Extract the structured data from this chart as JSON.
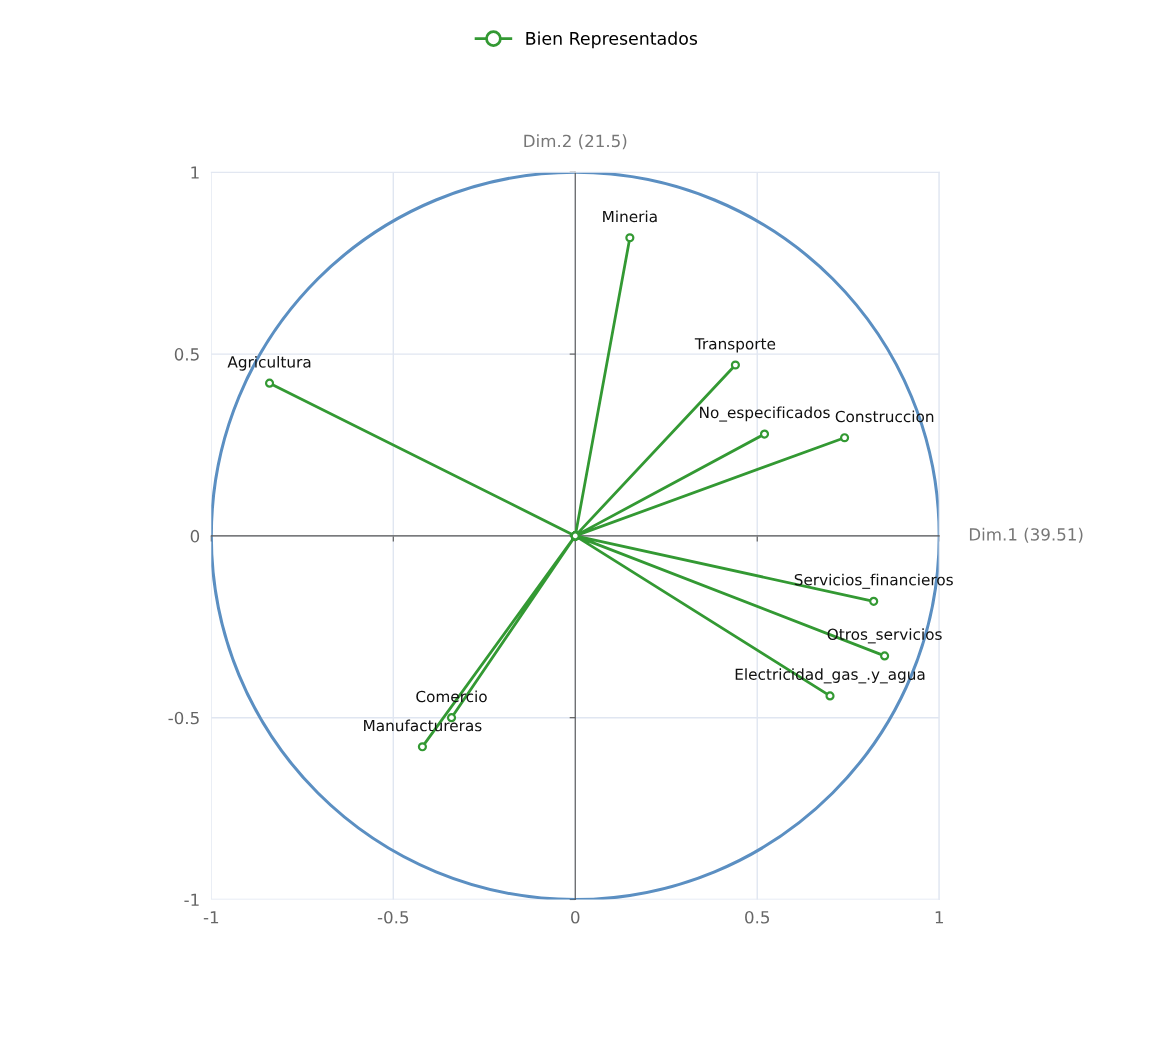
{
  "chart_data": {
    "type": "line",
    "xlabel": "Dim.1 (39.51)",
    "ylabel": "Dim.2 (21.5)",
    "xlim": [
      -1,
      1
    ],
    "ylim": [
      -1,
      1
    ],
    "xticks": [
      -1,
      -0.5,
      0,
      0.5,
      1
    ],
    "yticks": [
      -1,
      -0.5,
      0,
      0.5,
      1
    ],
    "grid": true,
    "legend": "top",
    "marker": "circle",
    "line_style": "solid",
    "series": [
      {
        "name": "Bien Representados",
        "color": "#339933",
        "x": [
          0,
          0.15,
          0,
          0.44,
          0,
          0.52,
          0,
          0.74,
          0,
          -0.84,
          0,
          0.82,
          0,
          0.85,
          0,
          0.7,
          0,
          -0.34,
          0,
          -0.42
        ],
        "values": [
          0,
          0.82,
          0,
          0.47,
          0,
          0.28,
          0,
          0.27,
          0,
          0.42,
          0,
          -0.18,
          0,
          -0.33,
          0,
          -0.44,
          0,
          -0.5,
          0,
          -0.58
        ]
      }
    ],
    "annotations": [
      {
        "text": "Mineria",
        "x": 0.15,
        "y": 0.82
      },
      {
        "text": "Transporte",
        "x": 0.44,
        "y": 0.47
      },
      {
        "text": "No_especificados",
        "x": 0.52,
        "y": 0.28
      },
      {
        "text": "Construccion",
        "x": 0.74,
        "y": 0.27
      },
      {
        "text": "Agricultura",
        "x": -0.84,
        "y": 0.42
      },
      {
        "text": "Servicios_financieros",
        "x": 0.82,
        "y": -0.18
      },
      {
        "text": "Otros_servicios",
        "x": 0.85,
        "y": -0.33
      },
      {
        "text": "Electricidad_gas_.y_agua",
        "x": 0.7,
        "y": -0.44
      },
      {
        "text": "Comercio",
        "x": -0.34,
        "y": -0.5
      },
      {
        "text": "Manufactureras",
        "x": -0.42,
        "y": -0.58
      }
    ]
  }
}
